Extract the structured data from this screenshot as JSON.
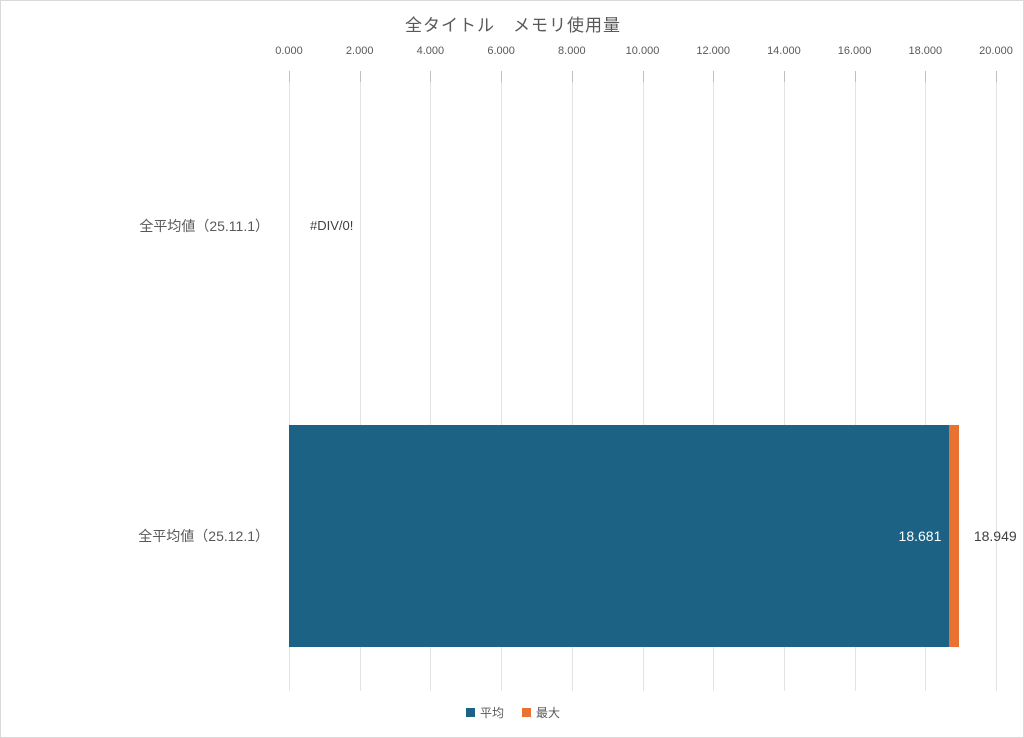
{
  "chart_data": {
    "type": "bar",
    "orientation": "horizontal",
    "title": "全タイトル　メモリ使用量",
    "categories": [
      "全平均値（25.11.1）",
      "全平均値（25.12.1）"
    ],
    "series": [
      {
        "name": "平均",
        "color": "#1b6284",
        "values": [
          null,
          18.681
        ],
        "labels": [
          "#DIV/0!",
          "18.681"
        ]
      },
      {
        "name": "最大",
        "color": "#e97132",
        "values": [
          null,
          18.949
        ],
        "labels": [
          "",
          "18.949"
        ]
      }
    ],
    "xlim": [
      0,
      20
    ],
    "x_ticks": [
      "0.000",
      "2.000",
      "4.000",
      "6.000",
      "8.000",
      "10.000",
      "12.000",
      "14.000",
      "16.000",
      "18.000",
      "20.000"
    ],
    "axis_position": "top",
    "grid": true,
    "legend_position": "bottom",
    "error_label": "#DIV/0!"
  },
  "legend": {
    "items": [
      {
        "label": "平均",
        "color": "#1b6284"
      },
      {
        "label": "最大",
        "color": "#e97132"
      }
    ]
  }
}
